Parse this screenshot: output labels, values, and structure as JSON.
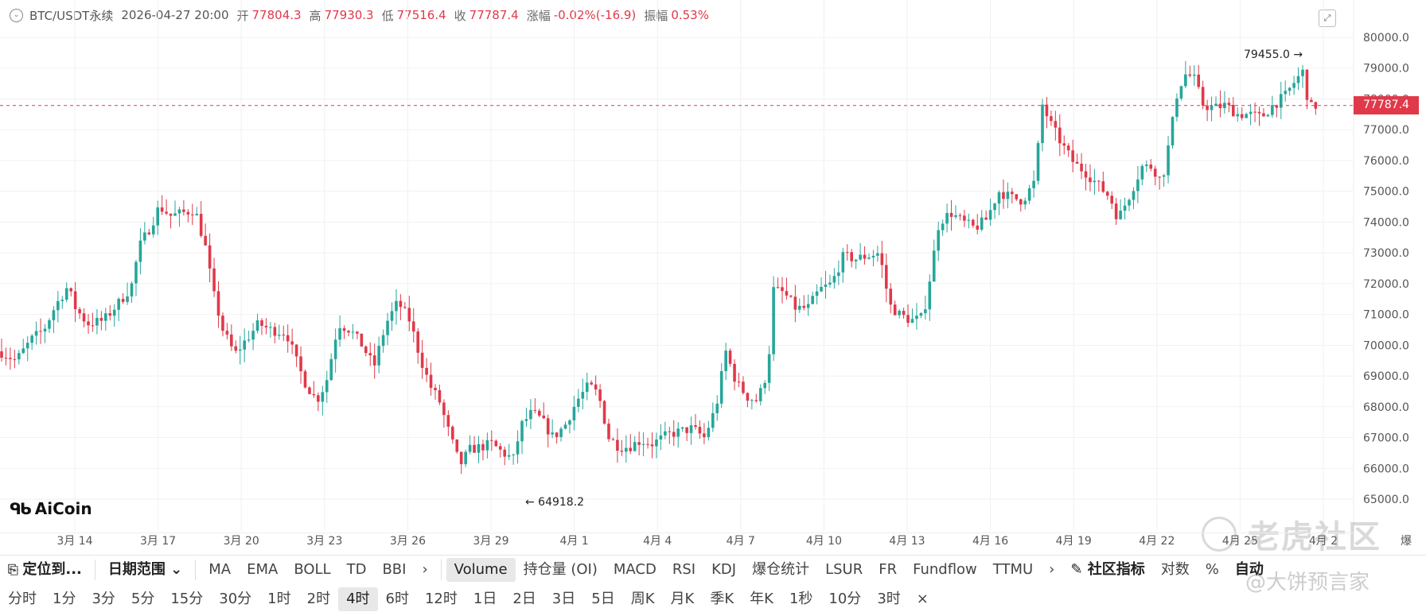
{
  "header": {
    "symbol": "BTC/USDT永续",
    "datetime": "2026-04-27 20:00",
    "open_label": "开",
    "open_value": "77804.3",
    "high_label": "高",
    "high_value": "77930.3",
    "low_label": "低",
    "low_value": "77516.4",
    "close_label": "收",
    "close_value": "77787.4",
    "change_label": "涨幅",
    "change_value": "-0.02%(-16.9)",
    "amplitude_label": "振幅",
    "amplitude_value": "0.53%"
  },
  "chart": {
    "current_price": "77787.4",
    "high_marker": "79455.0 →",
    "low_marker": "← 64918.2",
    "logo_text": "AiCoin",
    "right_edge_label": "爆"
  },
  "chart_data": {
    "type": "candlestick",
    "y_ticks": [
      "80000.0",
      "79000.0",
      "78000.0",
      "77000.0",
      "76000.0",
      "75000.0",
      "74000.0",
      "73000.0",
      "72000.0",
      "71000.0",
      "70000.0",
      "69000.0",
      "68000.0",
      "67000.0",
      "66000.0",
      "65000.0"
    ],
    "ylim": [
      64500,
      80500
    ],
    "x_ticks": [
      "3月 14",
      "3月 17",
      "3月 20",
      "3月 23",
      "3月 26",
      "3月 29",
      "4月 1",
      "4月 4",
      "4月 7",
      "4月 10",
      "4月 13",
      "4月 16",
      "4月 19",
      "4月 22",
      "4月 25",
      "4月 2"
    ],
    "current_price": 77787.4,
    "annotated_high": 79455.0,
    "annotated_low": 64918.2,
    "colors": {
      "up": "#26a69a",
      "down": "#e0394a"
    }
  },
  "watermark": {
    "text": "老虎社区",
    "author": "@大饼预言家"
  },
  "toolbar1": {
    "locate": "定位到...",
    "date_range": "日期范围",
    "indicators_main": [
      "MA",
      "EMA",
      "BOLL",
      "TD",
      "BBI"
    ],
    "indicators_sub": [
      "Volume",
      "持仓量 (OI)",
      "MACD",
      "RSI",
      "KDJ",
      "爆仓统计",
      "LSUR",
      "FR",
      "Fundflow",
      "TTMU"
    ],
    "community": "社区指标",
    "log": "对数",
    "percent": "%",
    "auto": "自动"
  },
  "toolbar2": {
    "intervals": [
      "分时",
      "1分",
      "3分",
      "5分",
      "15分",
      "30分",
      "1时",
      "2时",
      "4时",
      "6时",
      "12时",
      "1日",
      "2日",
      "3日",
      "5日",
      "周K",
      "月K",
      "季K",
      "年K",
      "1秒",
      "10分",
      "3时"
    ],
    "active": "4时",
    "close": "×"
  },
  "icons": [
    "collapse-icon",
    "fullscreen-icon",
    "locate-icon",
    "chevron-down-icon",
    "chevron-right-icon",
    "edit-icon",
    "aicoin-logo-icon"
  ]
}
